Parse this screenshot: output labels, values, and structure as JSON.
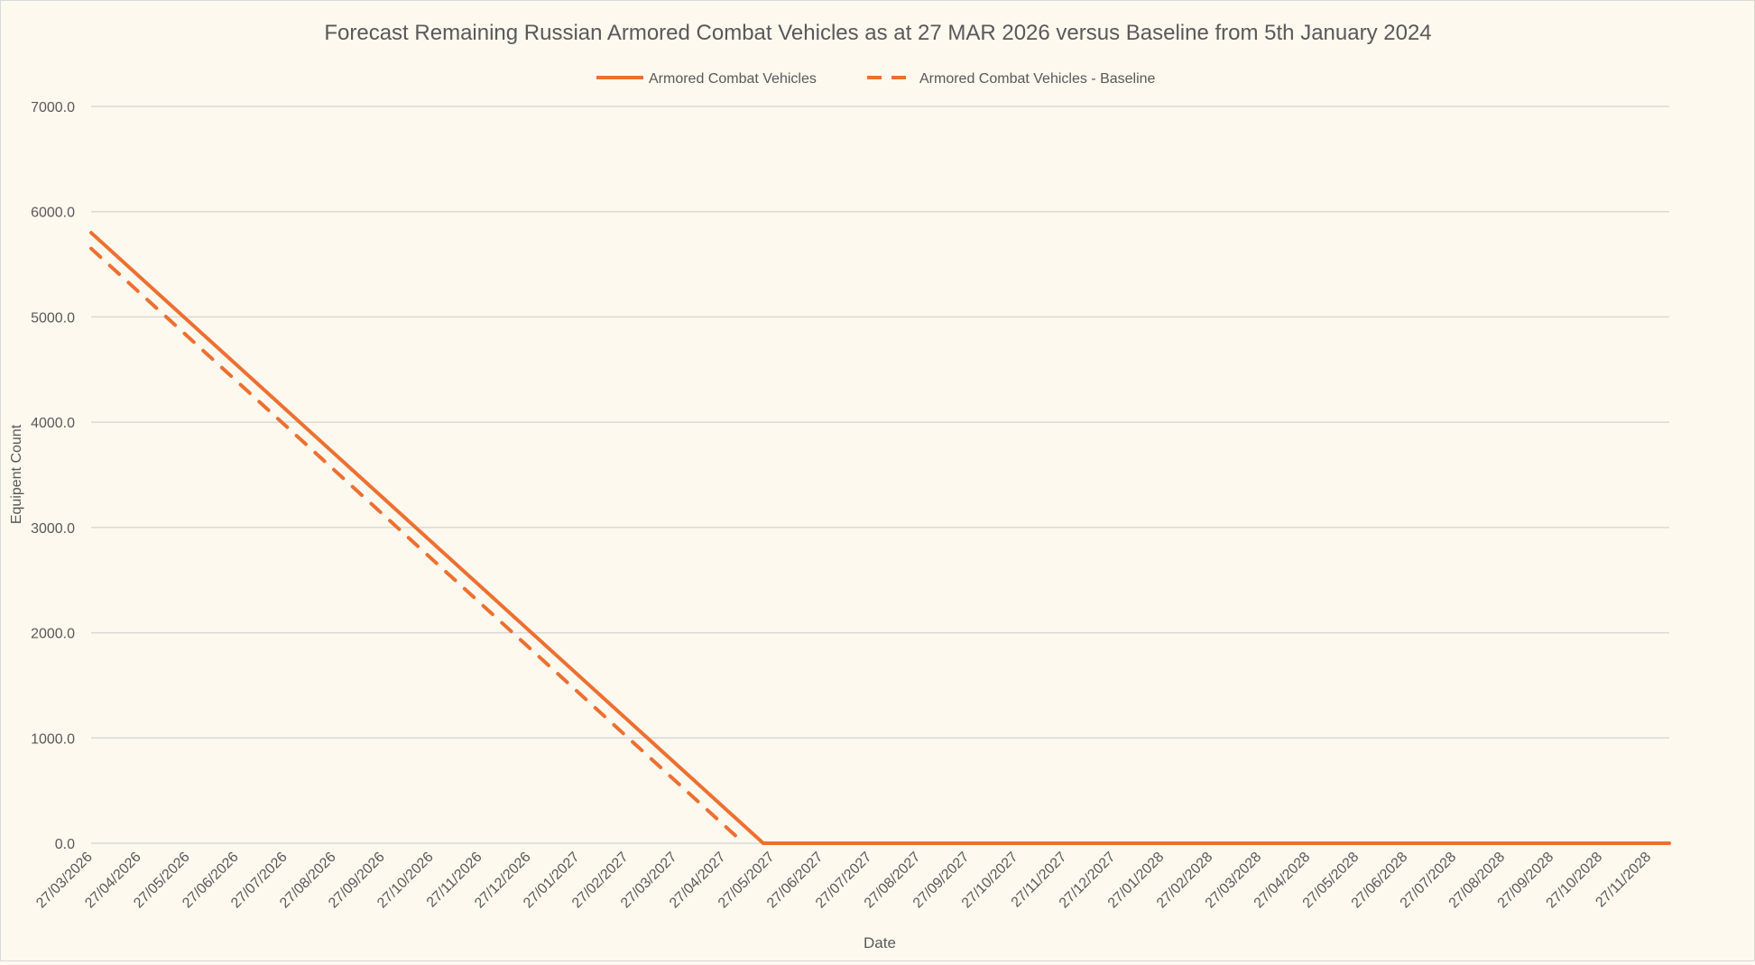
{
  "chart_data": {
    "type": "line",
    "title": "Forecast Remaining Russian Armored Combat Vehicles as at 27 MAR 2026 versus Baseline from 5th January 2024",
    "xlabel": "Date",
    "ylabel": "Equipent Count",
    "ylim": [
      0,
      7000
    ],
    "yticks": [
      "0.0",
      "1000.0",
      "2000.0",
      "3000.0",
      "4000.0",
      "5000.0",
      "6000.0",
      "7000.0"
    ],
    "grid": true,
    "legend_position": "top",
    "categories": [
      "27/03/2026",
      "27/04/2026",
      "27/05/2026",
      "27/06/2026",
      "27/07/2026",
      "27/08/2026",
      "27/09/2026",
      "27/10/2026",
      "27/11/2026",
      "27/12/2026",
      "27/01/2027",
      "27/02/2027",
      "27/03/2027",
      "27/04/2027",
      "27/05/2027",
      "27/06/2027",
      "27/07/2027",
      "27/08/2027",
      "27/09/2027",
      "27/10/2027",
      "27/11/2027",
      "27/12/2027",
      "27/01/2028",
      "27/02/2028",
      "27/03/2028",
      "27/04/2028",
      "27/05/2028",
      "27/06/2028",
      "27/07/2028",
      "27/08/2028",
      "27/09/2028",
      "27/10/2028",
      "27/11/2028"
    ],
    "x_unit": "months since 27/03/2026",
    "xlim": [
      0,
      32.4
    ],
    "series": [
      {
        "name": "Armored Combat Vehicles",
        "style": "solid",
        "color": "#ed7031",
        "points": [
          [
            0,
            5800
          ],
          [
            13.8,
            0
          ],
          [
            32.4,
            0
          ]
        ]
      },
      {
        "name": "Armored Combat Vehicles - Baseline",
        "style": "dashed",
        "color": "#ed7031",
        "points": [
          [
            0,
            5650
          ],
          [
            13.4,
            0
          ]
        ]
      }
    ]
  }
}
